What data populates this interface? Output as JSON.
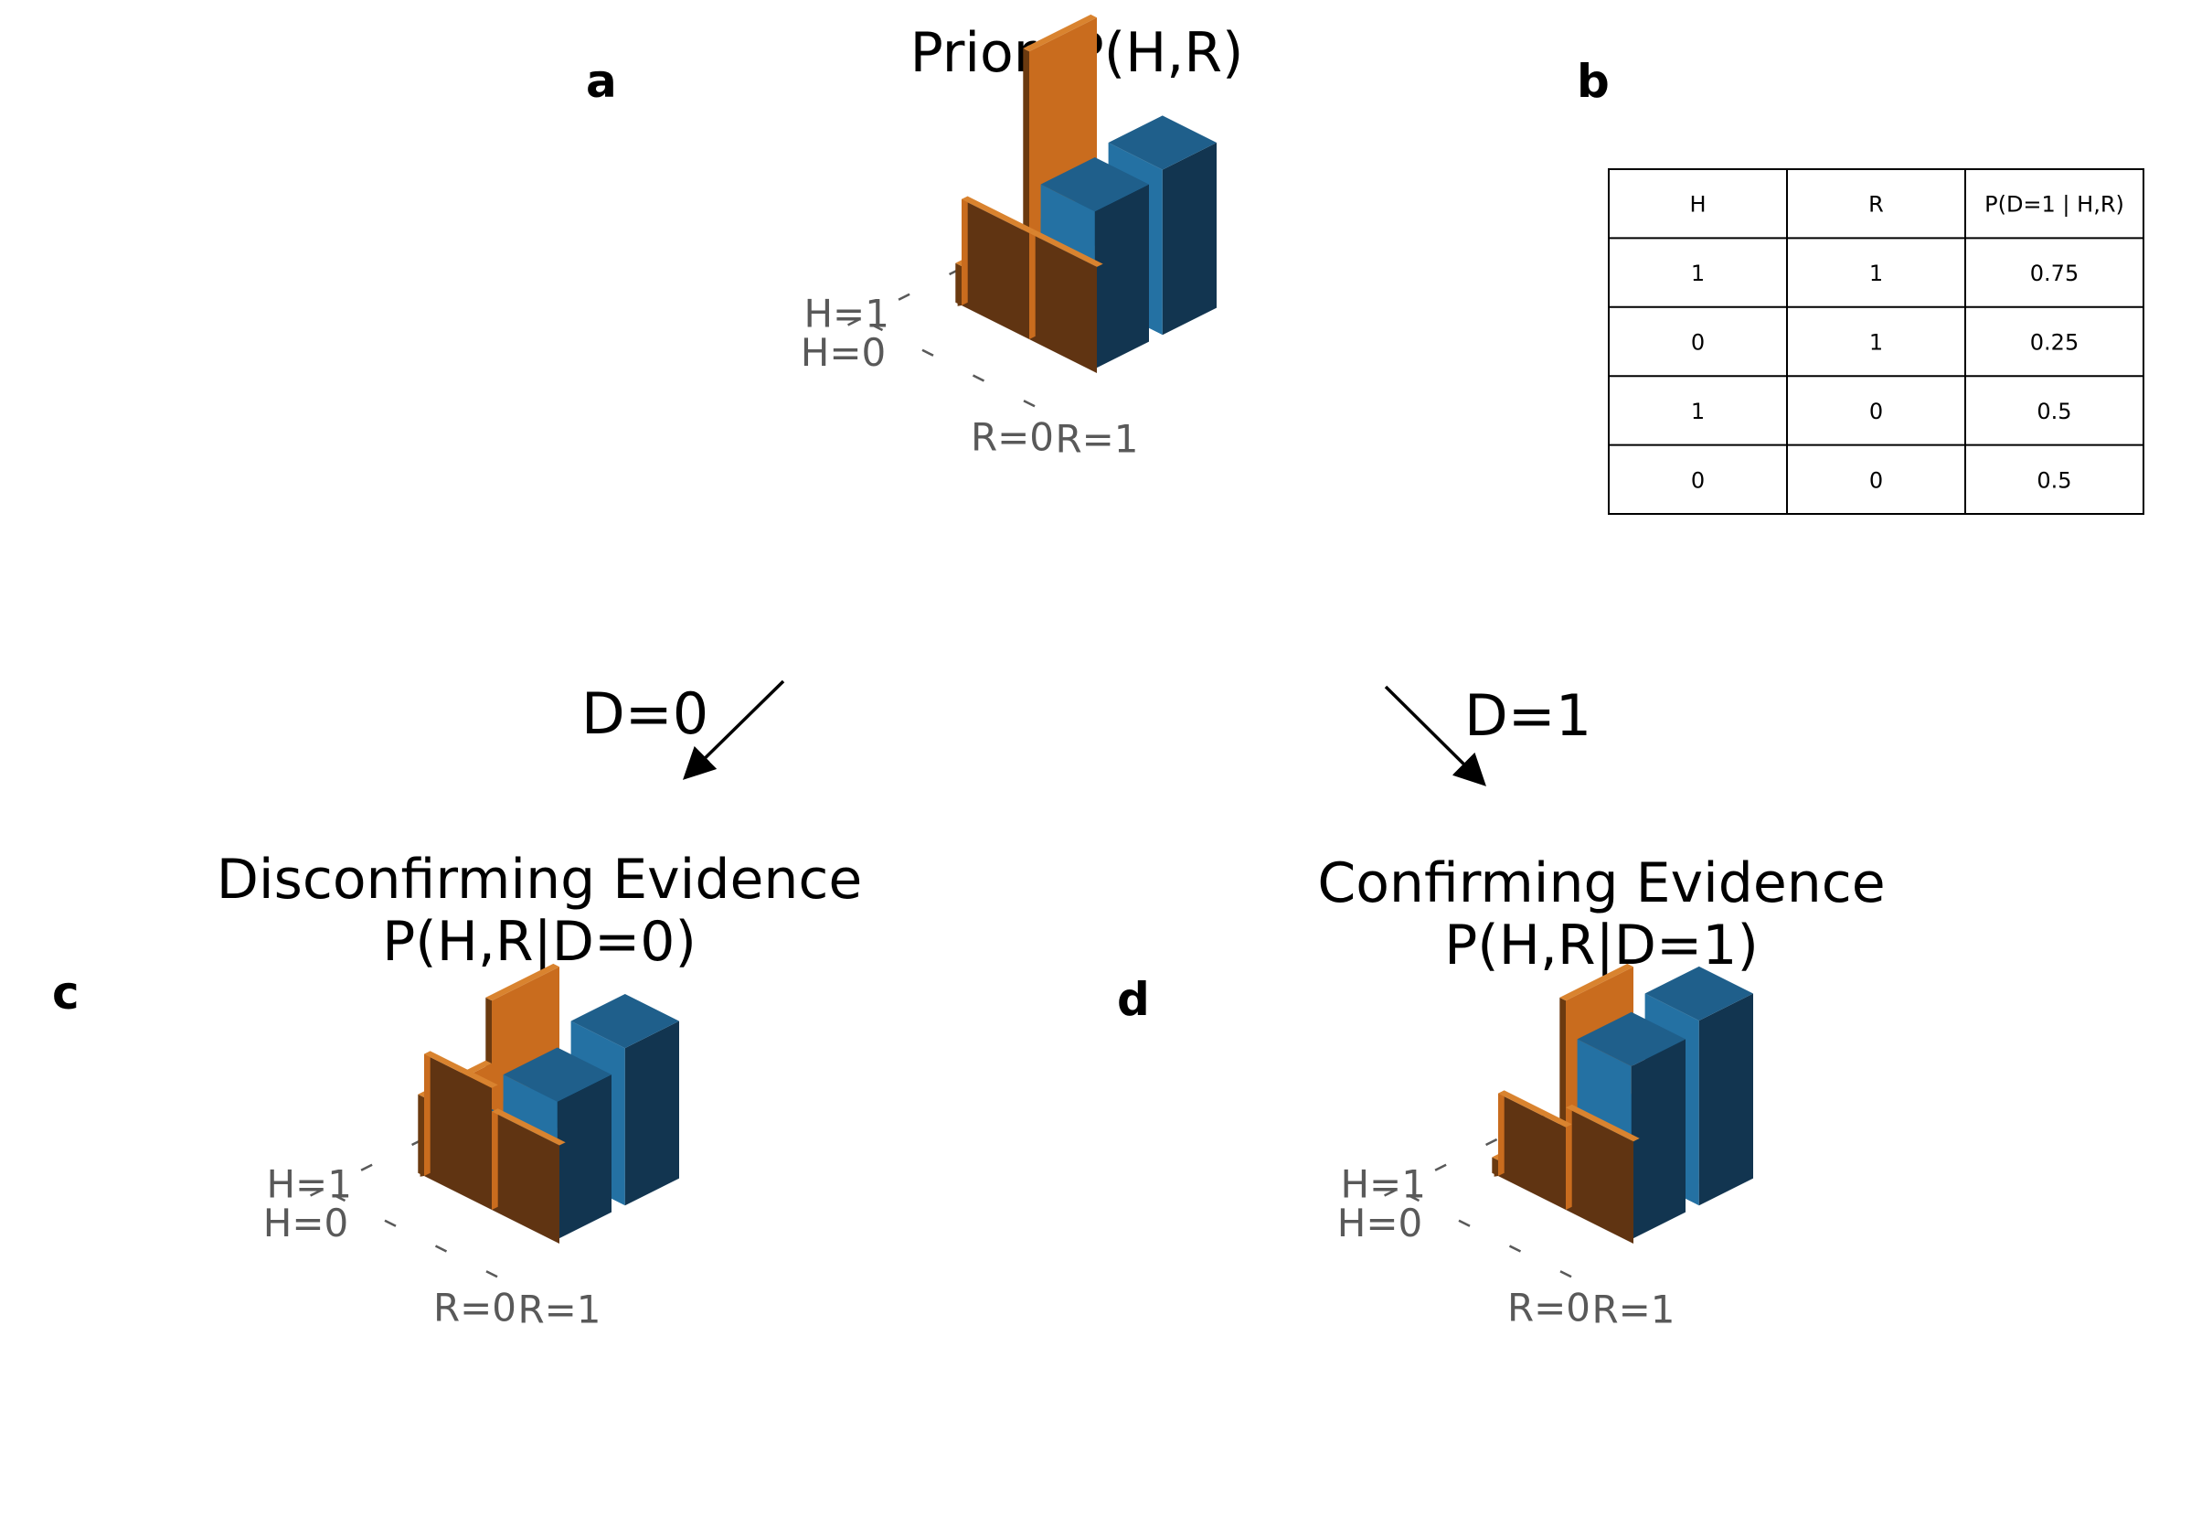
{
  "colors": {
    "blue_top": "#1f5f8b",
    "blue_left": "#2471a3",
    "blue_right": "#123550",
    "orange_front": "#c96c1e",
    "orange_side": "#6b3a10",
    "orange_top": "#d9832f",
    "orange_flat_front": "#603412",
    "tick_color": "#595959"
  },
  "chart_data": [
    {
      "panel": "a",
      "type": "bar3d",
      "title": "Prior, P(H,R)",
      "hypothesis_labels": [
        "H=1",
        "H=0"
      ],
      "reliability_labels": [
        "R=1",
        "R=0"
      ],
      "cells": [
        {
          "h": "H=1",
          "r": "R=1",
          "value": 0.14
        },
        {
          "h": "H=1",
          "r": "R=0",
          "value": 0.42
        },
        {
          "h": "H=0",
          "r": "R=1",
          "value": 0.04
        },
        {
          "h": "H=0",
          "r": "R=0",
          "value": 0.4
        }
      ],
      "marginal_h": [
        {
          "label": "H=1",
          "value": 0.56
        },
        {
          "label": "H=0",
          "value": 0.1
        }
      ],
      "marginal_r": [
        {
          "label": "R=1",
          "value": 0.27
        },
        {
          "label": "R=0",
          "value": 0.27
        }
      ]
    },
    {
      "panel": "c",
      "type": "bar3d",
      "title": "Disconfirming Evidence\nP(H,R|D=0)",
      "hypothesis_labels": [
        "H=1",
        "H=0"
      ],
      "reliability_labels": [
        "R=1",
        "R=0"
      ],
      "cells": [
        {
          "h": "H=1",
          "r": "R=1",
          "value": 0.11
        },
        {
          "h": "H=1",
          "r": "R=0",
          "value": 0.4
        },
        {
          "h": "H=0",
          "r": "R=1",
          "value": 0.11
        },
        {
          "h": "H=0",
          "r": "R=0",
          "value": 0.35
        }
      ],
      "marginal_h": [
        {
          "label": "H=1",
          "value": 0.36
        },
        {
          "label": "H=0",
          "value": 0.2
        }
      ],
      "marginal_r": [
        {
          "label": "R=1",
          "value": 0.25
        },
        {
          "label": "R=0",
          "value": 0.31
        }
      ]
    },
    {
      "panel": "d",
      "type": "bar3d",
      "title": "Confirming Evidence\nP(H,R|D=1)",
      "hypothesis_labels": [
        "H=1",
        "H=0"
      ],
      "reliability_labels": [
        "R=1",
        "R=0"
      ],
      "cells": [
        {
          "h": "H=1",
          "r": "R=1",
          "value": 0.06
        },
        {
          "h": "H=1",
          "r": "R=0",
          "value": 0.47
        },
        {
          "h": "H=0",
          "r": "R=1",
          "value": 0.03
        },
        {
          "h": "H=0",
          "r": "R=0",
          "value": 0.44
        }
      ],
      "marginal_h": [
        {
          "label": "H=1",
          "value": 0.36
        },
        {
          "label": "H=0",
          "value": 0.04
        }
      ],
      "marginal_r": [
        {
          "label": "R=1",
          "value": 0.26
        },
        {
          "label": "R=0",
          "value": 0.21
        }
      ]
    }
  ],
  "panel_labels": {
    "a": "a",
    "b": "b",
    "c": "c",
    "d": "d"
  },
  "titles": {
    "prior": "Prior, P(H,R)",
    "disconfirm_line1": "Disconfirming Evidence",
    "disconfirm_line2": "P(H,R|D=0)",
    "confirm_line1": "Confirming Evidence",
    "confirm_line2": "P(H,R|D=1)"
  },
  "arrows": {
    "left_label": "D=0",
    "right_label": "D=1"
  },
  "table": {
    "headers": [
      "H",
      "R",
      "P(D=1 | H,R)"
    ],
    "rows": [
      [
        "1",
        "1",
        "0.75"
      ],
      [
        "0",
        "1",
        "0.25"
      ],
      [
        "1",
        "0",
        "0.5"
      ],
      [
        "0",
        "0",
        "0.5"
      ]
    ]
  }
}
